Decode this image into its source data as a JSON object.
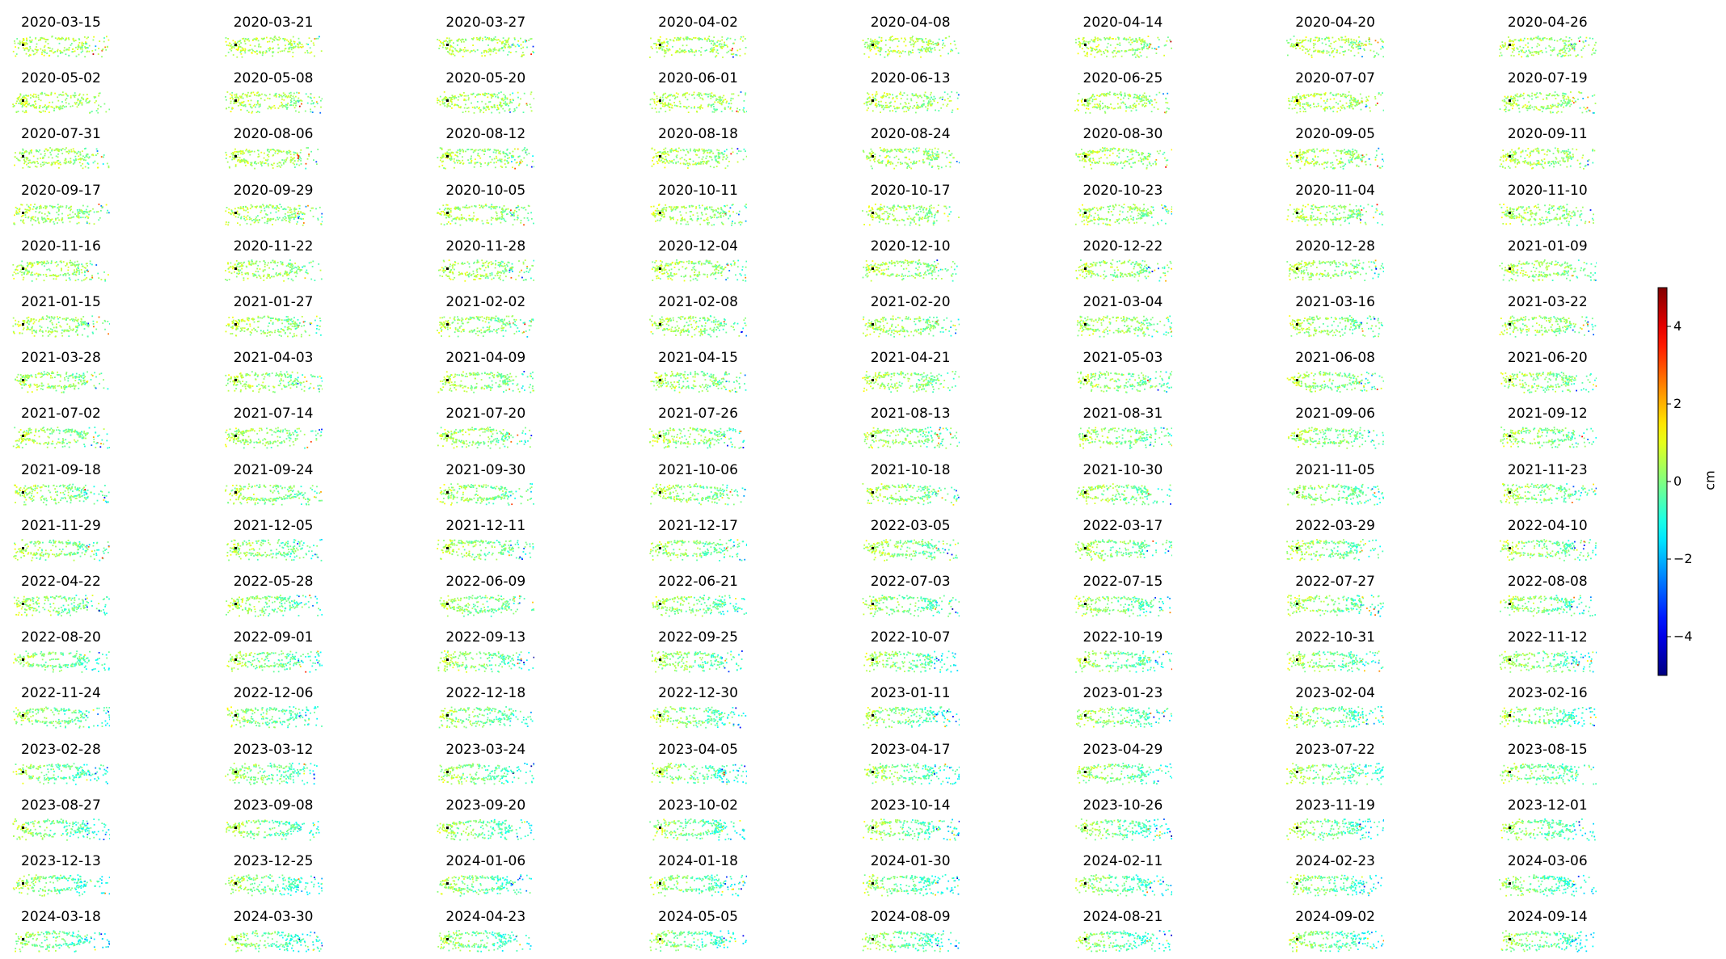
{
  "chart_data": {
    "type": "scatter",
    "layout": "small-multiples",
    "panels": [
      "2020-03-15",
      "2020-03-21",
      "2020-03-27",
      "2020-04-02",
      "2020-04-08",
      "2020-04-14",
      "2020-04-20",
      "2020-04-26",
      "2020-05-02",
      "2020-05-08",
      "2020-05-20",
      "2020-06-01",
      "2020-06-13",
      "2020-06-25",
      "2020-07-07",
      "2020-07-19",
      "2020-07-31",
      "2020-08-06",
      "2020-08-12",
      "2020-08-18",
      "2020-08-24",
      "2020-08-30",
      "2020-09-05",
      "2020-09-11",
      "2020-09-17",
      "2020-09-29",
      "2020-10-05",
      "2020-10-11",
      "2020-10-17",
      "2020-10-23",
      "2020-11-04",
      "2020-11-10",
      "2020-11-16",
      "2020-11-22",
      "2020-11-28",
      "2020-12-04",
      "2020-12-10",
      "2020-12-22",
      "2020-12-28",
      "2021-01-09",
      "2021-01-15",
      "2021-01-27",
      "2021-02-02",
      "2021-02-08",
      "2021-02-20",
      "2021-03-04",
      "2021-03-16",
      "2021-03-22",
      "2021-03-28",
      "2021-04-03",
      "2021-04-09",
      "2021-04-15",
      "2021-04-21",
      "2021-05-03",
      "2021-06-08",
      "2021-06-20",
      "2021-07-02",
      "2021-07-14",
      "2021-07-20",
      "2021-07-26",
      "2021-08-13",
      "2021-08-31",
      "2021-09-06",
      "2021-09-12",
      "2021-09-18",
      "2021-09-24",
      "2021-09-30",
      "2021-10-06",
      "2021-10-18",
      "2021-10-30",
      "2021-11-05",
      "2021-11-23",
      "2021-11-29",
      "2021-12-05",
      "2021-12-11",
      "2021-12-17",
      "2022-03-05",
      "2022-03-17",
      "2022-03-29",
      "2022-04-10",
      "2022-04-22",
      "2022-05-28",
      "2022-06-09",
      "2022-06-21",
      "2022-07-03",
      "2022-07-15",
      "2022-07-27",
      "2022-08-08",
      "2022-08-20",
      "2022-09-01",
      "2022-09-13",
      "2022-09-25",
      "2022-10-07",
      "2022-10-19",
      "2022-10-31",
      "2022-11-12",
      "2022-11-24",
      "2022-12-06",
      "2022-12-18",
      "2022-12-30",
      "2023-01-11",
      "2023-01-23",
      "2023-02-04",
      "2023-02-16",
      "2023-02-28",
      "2023-03-12",
      "2023-03-24",
      "2023-04-05",
      "2023-04-17",
      "2023-04-29",
      "2023-07-22",
      "2023-08-15",
      "2023-08-27",
      "2023-09-08",
      "2023-09-20",
      "2023-10-02",
      "2023-10-14",
      "2023-10-26",
      "2023-11-19",
      "2023-12-01",
      "2023-12-13",
      "2023-12-25",
      "2024-01-06",
      "2024-01-18",
      "2024-01-30",
      "2024-02-11",
      "2024-02-23",
      "2024-03-06",
      "2024-03-18",
      "2024-03-30",
      "2024-04-23",
      "2024-05-05",
      "2024-08-09",
      "2024-08-21",
      "2024-09-02",
      "2024-09-14"
    ],
    "colorbar": {
      "label": "cm",
      "range": [
        -5,
        5
      ],
      "ticks": [
        4,
        2,
        0,
        -2,
        -4
      ],
      "tick_labels": [
        "4",
        "2",
        "0",
        "−2",
        "−4"
      ],
      "colormap": "jet"
    }
  }
}
